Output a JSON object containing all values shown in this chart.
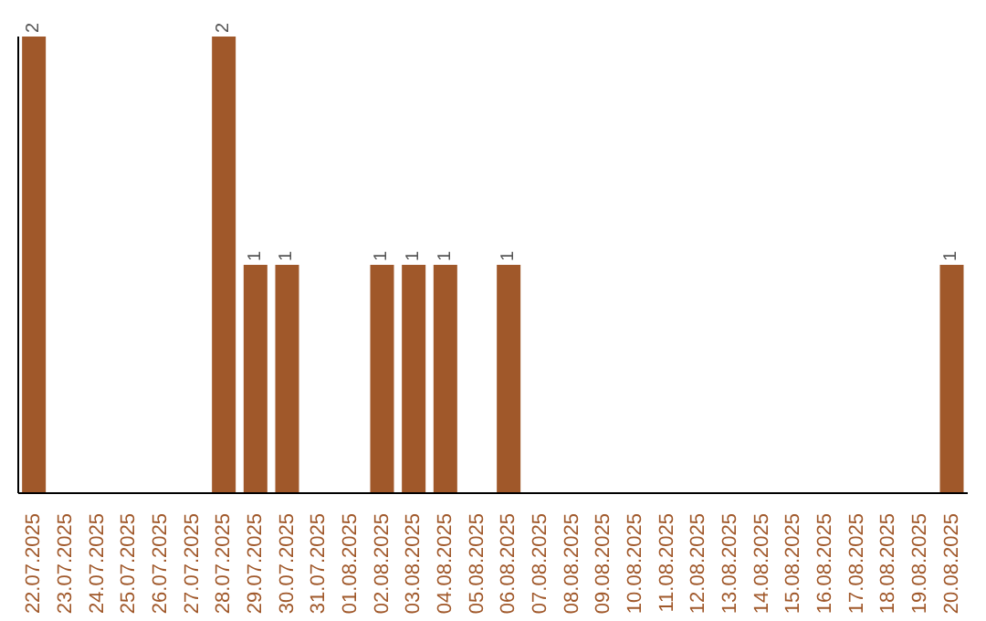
{
  "chart_data": {
    "type": "bar",
    "categories": [
      "22.07.2025",
      "23.07.2025",
      "24.07.2025",
      "25.07.2025",
      "26.07.2025",
      "27.07.2025",
      "28.07.2025",
      "29.07.2025",
      "30.07.2025",
      "31.07.2025",
      "01.08.2025",
      "02.08.2025",
      "03.08.2025",
      "04.08.2025",
      "05.08.2025",
      "06.08.2025",
      "07.08.2025",
      "08.08.2025",
      "09.08.2025",
      "10.08.2025",
      "11.08.2025",
      "12.08.2025",
      "13.08.2025",
      "14.08.2025",
      "15.08.2025",
      "16.08.2025",
      "17.08.2025",
      "18.08.2025",
      "19.08.2025",
      "20.08.2025"
    ],
    "values": [
      2,
      0,
      0,
      0,
      0,
      0,
      2,
      1,
      1,
      0,
      0,
      1,
      1,
      1,
      0,
      1,
      0,
      0,
      0,
      0,
      0,
      0,
      0,
      0,
      0,
      0,
      0,
      0,
      0,
      1
    ],
    "value_labels": [
      "2",
      null,
      null,
      null,
      null,
      null,
      "2",
      "1",
      "1",
      null,
      null,
      "1",
      "1",
      "1",
      null,
      "1",
      null,
      null,
      null,
      null,
      null,
      null,
      null,
      null,
      null,
      null,
      null,
      null,
      null,
      "1"
    ],
    "color": "#a0582a"
  }
}
